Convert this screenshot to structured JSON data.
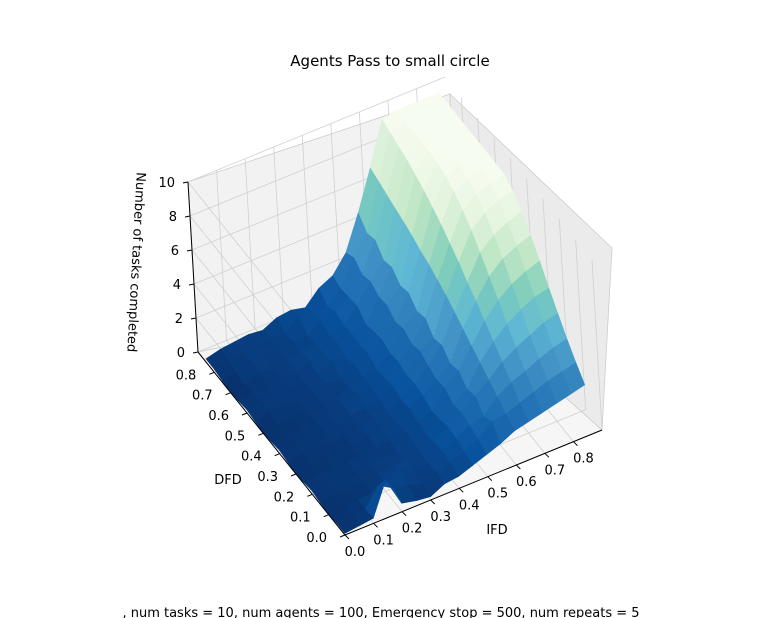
{
  "chart_data": {
    "type": "surface3d",
    "title": "Agents Pass to small circle",
    "xlabel": "IFD",
    "ylabel": "DFD",
    "zlabel": "Number of tasks completed",
    "xlim": [
      0,
      0.9
    ],
    "ylim": [
      0,
      0.9
    ],
    "zlim": [
      0,
      10
    ],
    "x_ticks": [
      "0.0",
      "0.1",
      "0.2",
      "0.3",
      "0.4",
      "0.5",
      "0.6",
      "0.7",
      "0.8"
    ],
    "y_ticks": [
      "0.0",
      "0.1",
      "0.2",
      "0.3",
      "0.4",
      "0.5",
      "0.6",
      "0.7",
      "0.8"
    ],
    "z_ticks": [
      "0",
      "2",
      "4",
      "6",
      "8",
      "10"
    ],
    "colormap": "GnBu_r",
    "colormap_stops": [
      "#08306b",
      "#08519c",
      "#2171b5",
      "#4292c6",
      "#5fb8d4",
      "#7fcdbb",
      "#bfe6c5",
      "#e4f4df",
      "#f7fcf0"
    ],
    "x": [
      0.0,
      0.05,
      0.1,
      0.15,
      0.2,
      0.25,
      0.3,
      0.35,
      0.4,
      0.45,
      0.5,
      0.55,
      0.6,
      0.65,
      0.7,
      0.75,
      0.8,
      0.85
    ],
    "y": [
      0.0,
      0.05,
      0.1,
      0.15,
      0.2,
      0.25,
      0.3,
      0.35,
      0.4,
      0.45,
      0.5,
      0.55,
      0.6,
      0.65,
      0.7,
      0.75,
      0.8,
      0.85
    ],
    "z_by_x": [
      [
        0.1,
        0.1,
        0.0,
        0.1,
        0.2,
        0.1,
        0.0,
        0.1,
        0.2,
        0.1,
        0.0,
        0.1,
        0.2,
        0.1,
        0.0,
        0.1,
        0.2,
        0.2
      ],
      [
        0.2,
        0.3,
        0.1,
        0.2,
        0.4,
        0.2,
        0.1,
        0.3,
        0.2,
        0.2,
        0.1,
        0.3,
        0.4,
        0.2,
        0.1,
        0.2,
        0.3,
        0.4
      ],
      [
        0.3,
        0.2,
        0.2,
        0.1,
        0.3,
        0.2,
        0.2,
        0.2,
        0.3,
        0.1,
        0.2,
        0.4,
        0.3,
        0.3,
        0.5,
        0.6,
        0.4,
        0.5
      ],
      [
        2.2,
        1.3,
        0.2,
        0.3,
        0.3,
        0.3,
        0.3,
        0.2,
        0.4,
        0.3,
        0.3,
        0.2,
        0.4,
        0.4,
        0.3,
        0.5,
        0.5,
        0.6
      ],
      [
        0.5,
        0.8,
        0.5,
        0.4,
        0.4,
        0.3,
        0.2,
        0.4,
        0.3,
        0.4,
        0.5,
        0.5,
        0.4,
        0.5,
        0.6,
        0.4,
        0.6,
        0.5
      ],
      [
        0.3,
        0.6,
        1.0,
        0.5,
        0.5,
        0.4,
        0.6,
        0.4,
        0.5,
        0.6,
        0.3,
        0.6,
        0.5,
        0.7,
        0.6,
        0.6,
        0.6,
        0.9
      ],
      [
        0.2,
        0.3,
        0.5,
        0.6,
        0.3,
        0.5,
        0.7,
        0.6,
        0.6,
        0.8,
        0.7,
        0.5,
        1.0,
        0.8,
        0.9,
        0.7,
        1.2,
        1.0
      ],
      [
        0.6,
        0.7,
        0.6,
        0.7,
        0.8,
        0.8,
        0.6,
        0.7,
        0.8,
        0.9,
        0.9,
        1.0,
        0.8,
        1.1,
        0.9,
        1.2,
        1.1,
        0.8
      ],
      [
        0.7,
        0.9,
        1.0,
        0.9,
        0.8,
        0.9,
        1.1,
        1.0,
        1.2,
        1.1,
        1.0,
        1.3,
        1.2,
        1.3,
        1.2,
        1.4,
        1.1,
        1.6
      ],
      [
        1.0,
        1.2,
        1.4,
        1.5,
        1.3,
        1.2,
        1.5,
        1.6,
        1.5,
        1.7,
        1.6,
        1.8,
        1.7,
        1.5,
        2.0,
        1.9,
        1.8,
        2.0
      ],
      [
        1.3,
        1.6,
        1.8,
        2.0,
        1.8,
        2.2,
        2.1,
        2.3,
        2.6,
        2.4,
        2.7,
        2.5,
        2.9,
        2.8,
        3.1,
        2.9,
        3.3,
        3.0
      ],
      [
        1.6,
        2.3,
        2.0,
        2.6,
        2.4,
        2.9,
        2.7,
        3.2,
        3.0,
        3.6,
        3.4,
        3.9,
        3.7,
        4.2,
        4.0,
        4.6,
        4.4,
        5.0
      ],
      [
        2.0,
        2.4,
        2.8,
        3.2,
        3.6,
        4.0,
        4.4,
        4.8,
        5.2,
        5.5,
        5.8,
        6.0,
        6.3,
        6.5,
        6.7,
        6.9,
        7.1,
        7.3
      ],
      [
        2.2,
        2.7,
        3.3,
        3.9,
        4.5,
        5.1,
        5.7,
        6.2,
        6.8,
        7.3,
        7.8,
        8.2,
        8.6,
        8.9,
        9.2,
        9.4,
        9.6,
        9.8
      ],
      [
        2.4,
        3.0,
        3.6,
        4.4,
        5.2,
        6.0,
        6.8,
        7.6,
        8.3,
        8.9,
        9.4,
        9.7,
        9.9,
        10.0,
        10.0,
        10.0,
        10.0,
        10.0
      ],
      [
        2.6,
        3.3,
        4.0,
        4.8,
        5.7,
        6.6,
        7.5,
        8.3,
        9.0,
        9.5,
        9.8,
        10.0,
        10.0,
        10.0,
        10.0,
        10.0,
        10.0,
        10.0
      ],
      [
        2.8,
        3.5,
        4.3,
        5.2,
        6.1,
        7.0,
        7.9,
        8.7,
        9.4,
        9.8,
        10.0,
        10.0,
        10.0,
        10.0,
        10.0,
        10.0,
        10.0,
        10.0
      ],
      [
        3.0,
        3.7,
        4.5,
        5.4,
        6.3,
        7.3,
        8.2,
        9.0,
        9.6,
        10.0,
        10.0,
        10.0,
        10.0,
        10.0,
        10.0,
        10.0,
        10.0,
        10.0
      ]
    ],
    "grid": true,
    "footer": ", num tasks = 10, num agents = 100, Emergency stop = 500, num repeats = 5"
  }
}
